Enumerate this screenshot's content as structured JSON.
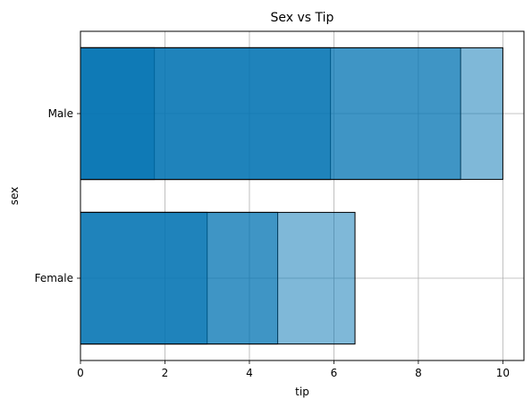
{
  "chart_data": {
    "type": "bar",
    "orientation": "horizontal",
    "title": "Sex vs Tip",
    "xlabel": "tip",
    "ylabel": "sex",
    "categories": [
      "Female",
      "Male"
    ],
    "xlim": [
      0,
      10.5
    ],
    "xticks": [
      0,
      2,
      4,
      6,
      8,
      10
    ],
    "grid": true,
    "bar_color": "#0072b2",
    "edge_color": "#000000",
    "segments": {
      "Male": [
        1.75,
        5.92,
        9.0,
        10.0
      ],
      "Female": [
        3.0,
        4.67,
        6.5
      ]
    }
  }
}
